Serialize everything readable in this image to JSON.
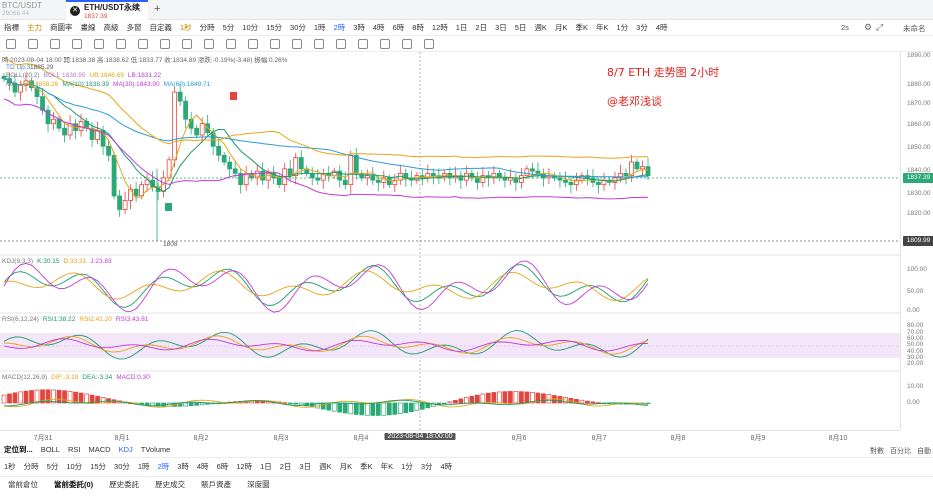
{
  "tabs": [
    {
      "symbol": "BTC/USDT",
      "price": "29066.44"
    },
    {
      "symbol": "ETH/USDT永续",
      "price": "1837.39"
    }
  ],
  "toolbar": {
    "items": [
      "指標",
      "主力",
      "商圖率",
      "畫線",
      "高級",
      "多窗",
      "自定義",
      "1秒",
      "分時",
      "5分",
      "10分",
      "15分",
      "30分",
      "1時",
      "2時",
      "3時",
      "4時",
      "6時",
      "8時",
      "12時",
      "1日",
      "2日",
      "3日",
      "5日",
      "週K",
      "月K",
      "季K",
      "年K",
      "1分",
      "3分",
      "4時"
    ],
    "active": "2時",
    "highlight": [
      "主力",
      "1秒"
    ],
    "right_interval": "2s",
    "right_status": "未命名"
  },
  "legend": {
    "time_line": "時 2023-08-04 18:00  開:1838.38  高:1838.62  低:1833.77  收:1834.89  漲跌:-0.19%(-3.48)  振幅:0.26%",
    "td": "TD  Up:3",
    "boll": [
      "BOLL(20,2)",
      "BOLL:1838.95",
      "UB:1846.69",
      "LB:1831.22"
    ],
    "ma": [
      "MA",
      "MA5:1838.26",
      "MA(10):1838.39",
      "MA(30):1843.90",
      "MA(60):1849.71"
    ],
    "high_mark": "1885.29",
    "low_mark": "1808",
    "kdj": [
      "KDJ(9,3,3)",
      "K:30.15",
      "D:33.31",
      "J:23.83"
    ],
    "rsi": [
      "RSI(6,12,24)",
      "RSI1:38.22",
      "RSI2:42.20",
      "RSI3:43.81"
    ],
    "macd": [
      "MACD(12,26,9)",
      "DIF:-3.19",
      "DEA:-3.34",
      "MACD:0.30"
    ]
  },
  "annotation": {
    "title": "8/7  ETH  走势图  2小时",
    "author": "@老邓浅谈"
  },
  "yaxis": {
    "main": [
      "1890.00",
      "1880.00",
      "1870.00",
      "1860.00",
      "1850.00",
      "1840.00",
      "1830.00",
      "1820.00"
    ],
    "current_price": "1837.39",
    "low_price": "1809.99",
    "kdj": [
      "100.00",
      "50.00",
      "0.00"
    ],
    "rsi": [
      "80.00",
      "70.00",
      "60.00",
      "50.00",
      "40.00",
      "30.00",
      "20.00"
    ],
    "macd": [
      "10.00",
      "0.00"
    ]
  },
  "xaxis": {
    "labels": [
      "7月31",
      "8月1",
      "8月2",
      "8月3",
      "8月4",
      "8月6",
      "8月7",
      "8月8",
      "8月9",
      "8月10"
    ],
    "crosshair": "2023-08-04 18:00:00",
    "right": [
      "對數",
      "百分比",
      "自動"
    ]
  },
  "bottombar": {
    "title": "定位到...",
    "indicators": [
      "BOLL",
      "RSI",
      "MACD",
      "KDJ",
      "TVolume"
    ],
    "active": "KDJ",
    "intervals": [
      "1秒",
      "分時",
      "5分",
      "10分",
      "15分",
      "30分",
      "1時",
      "2時",
      "3時",
      "4時",
      "6時",
      "12時",
      "1日",
      "2日",
      "3日",
      "週K",
      "月K",
      "季K",
      "年K",
      "1分",
      "3分",
      "4時"
    ],
    "active_interval": "2時"
  },
  "bottomtabs": {
    "items": [
      "當前倉位",
      "當前委託(0)",
      "歷史委託",
      "歷史成交",
      "賬戶資產",
      "深度圖"
    ],
    "active": "當前委託(0)"
  },
  "colors": {
    "up": "#e0463f",
    "down": "#2aa876",
    "accent": "#2962ff"
  }
}
